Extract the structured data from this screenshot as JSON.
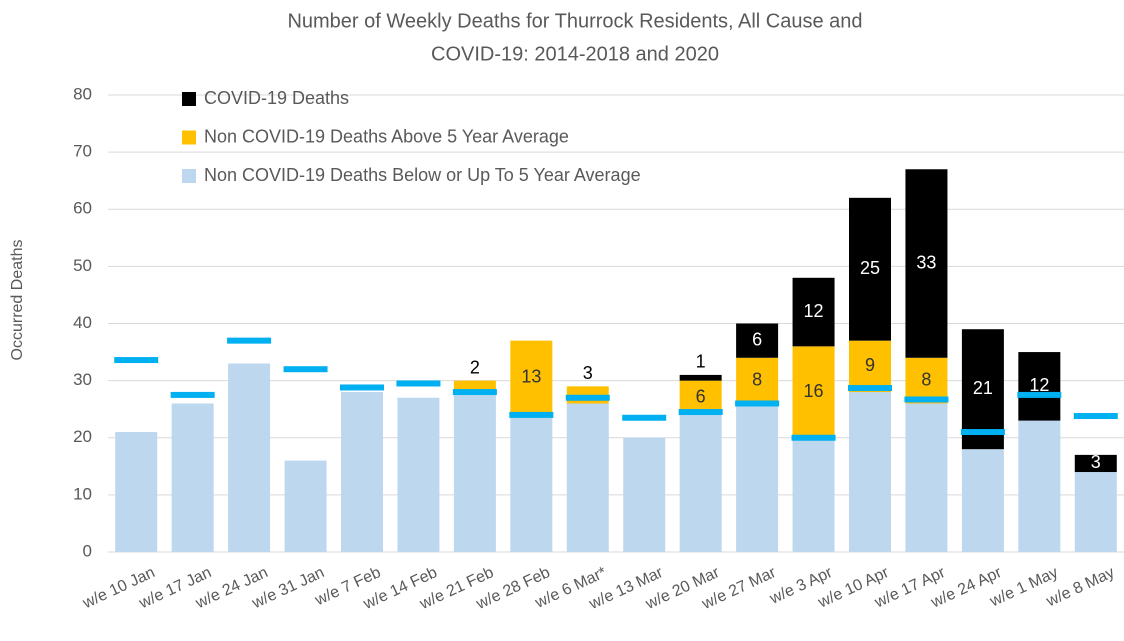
{
  "chart_data": {
    "type": "stacked_bar",
    "title": [
      "Number of Weekly Deaths for Thurrock Residents, All Cause and",
      "COVID-19: 2014-2018 and 2020"
    ],
    "ylabel": "Occurred Deaths",
    "categories": [
      "w/e 10 Jan",
      "w/e 17 Jan",
      "w/e 24 Jan",
      "w/e 31 Jan",
      "w/e 7 Feb",
      "w/e 14 Feb",
      "w/e 21 Feb",
      "w/e 28 Feb",
      "w/e 6 Mar*",
      "w/e 13 Mar",
      "w/e 20 Mar",
      "w/e 27 Mar",
      "w/e 3 Apr",
      "w/e 10 Apr",
      "w/e 17 Apr",
      "w/e 24 Apr",
      "w/e 1 May",
      "w/e 8 May"
    ],
    "series": [
      {
        "name": "Non COVID-19 Deaths Below or Up To 5 Year Average",
        "color": "#bdd7ee",
        "values": [
          21,
          26,
          33,
          16,
          28,
          27,
          28,
          24,
          26,
          20,
          24,
          26,
          20,
          28,
          26,
          18,
          23,
          14
        ],
        "labels": false
      },
      {
        "name": "Non COVID-19 Deaths Above 5 Year Average",
        "color": "#ffc000",
        "values": [
          null,
          null,
          null,
          null,
          null,
          null,
          2,
          13,
          3,
          null,
          6,
          8,
          16,
          9,
          8,
          null,
          null,
          null
        ],
        "labels": true
      },
      {
        "name": "COVID-19 Deaths",
        "color": "#000000",
        "values": [
          null,
          null,
          null,
          null,
          null,
          null,
          null,
          null,
          null,
          null,
          1,
          6,
          12,
          25,
          33,
          21,
          12,
          3
        ],
        "labels": true
      }
    ],
    "average_markers": {
      "color": "#00b0f0",
      "values": [
        33.6,
        27.5,
        37,
        32,
        28.8,
        29.5,
        28,
        24,
        27,
        23.5,
        24.5,
        26,
        20,
        28.7,
        26.7,
        21,
        27.5,
        23.8
      ]
    },
    "ylim": [
      0,
      80
    ],
    "yticks": [
      0,
      10,
      20,
      30,
      40,
      50,
      60,
      70,
      80
    ],
    "grid": true,
    "legend": "top-left"
  }
}
